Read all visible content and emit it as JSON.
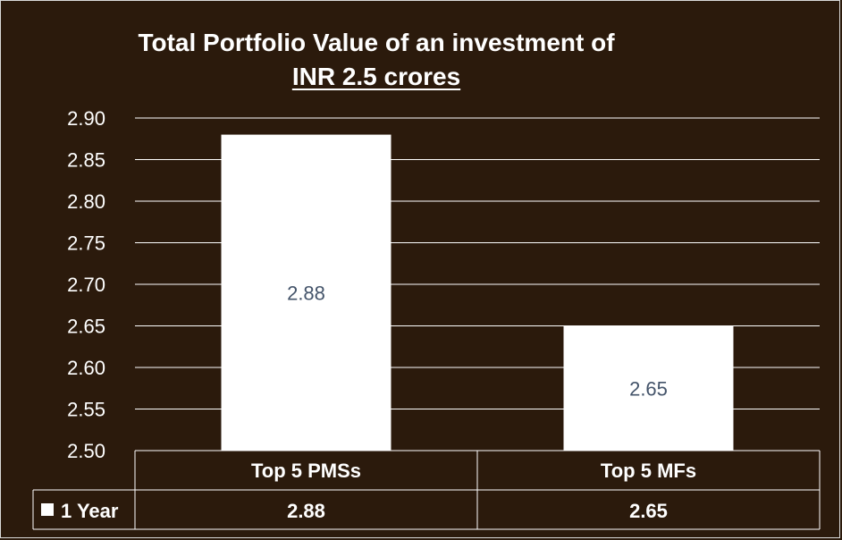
{
  "chart_data": {
    "type": "bar",
    "title": [
      "Total Portfolio Value of an investment of",
      "INR 2.5 crores"
    ],
    "xlabel": "",
    "ylabel": "",
    "categories": [
      "Top 5 PMSs",
      "Top 5 MFs"
    ],
    "series": [
      {
        "name": "1 Year",
        "values": [
          2.88,
          2.65
        ]
      }
    ],
    "data_labels": [
      "2.88",
      "2.65"
    ],
    "table_values": [
      "2.88",
      "2.65"
    ],
    "ylim": [
      2.5,
      2.9
    ],
    "yticks": [
      "2.50",
      "2.55",
      "2.60",
      "2.65",
      "2.70",
      "2.75",
      "2.80",
      "2.85",
      "2.90"
    ],
    "grid": true,
    "data_table": true,
    "legend": "in data table",
    "colors": {
      "background": "#2b1a0c",
      "bar": "#ffffff",
      "text": "#ffffff",
      "data_label": "#44546a",
      "grid": "#ffffff"
    }
  }
}
